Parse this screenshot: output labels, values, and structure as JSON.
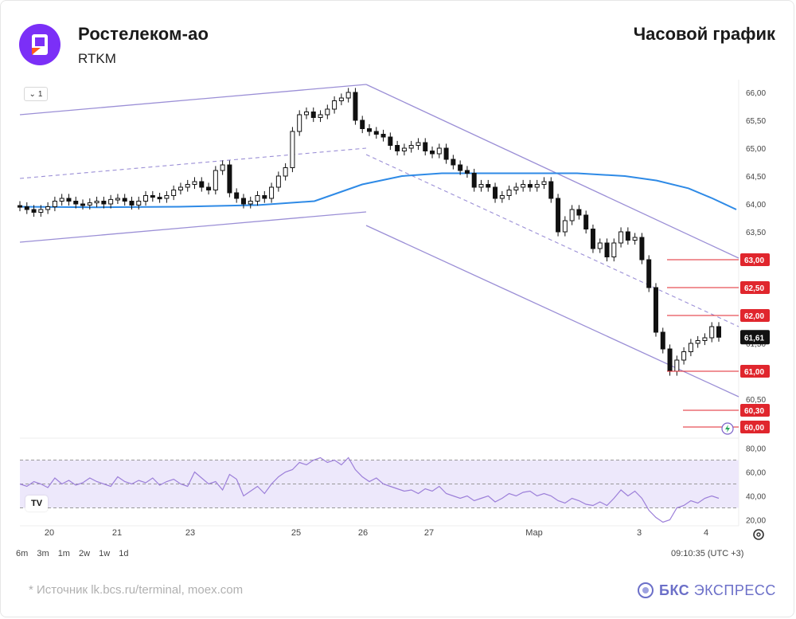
{
  "header": {
    "title": "Ростелеком-ао",
    "ticker": "RTKM",
    "chart_type_label": "Часовой график",
    "logo_icon": "rostelecom-logo-icon",
    "logo_color": "#7b2ff7"
  },
  "toolbar": {
    "collapse_label": "1",
    "intervals": [
      "6m",
      "3m",
      "1m",
      "2w",
      "1w",
      "1d"
    ],
    "timestamp": "09:10:35 (UTC +3)"
  },
  "footer": {
    "source": "*  Источник lk.bcs.ru/terminal, moex.com",
    "brand_bold": "БКС",
    "brand_regular": " ЭКСПРЕСС",
    "brand_color": "#6b6fc8"
  },
  "chart_data": [
    {
      "type": "candlestick",
      "y_axis_ticks": [
        "66,00",
        "65,50",
        "65,00",
        "64,50",
        "64,00",
        "63,50",
        "63,00",
        "62,50",
        "62,00",
        "61,50",
        "61,00",
        "60,50",
        "60,30",
        "60,00"
      ],
      "ylim": [
        60.0,
        66.1
      ],
      "x_ticks": [
        "20",
        "21",
        "23",
        "25",
        "26",
        "27",
        "Мар",
        "3",
        "4"
      ],
      "last_price": 61.61,
      "last_price_label": "61,61",
      "levels": [
        {
          "value": 63.0,
          "label": "63,00"
        },
        {
          "value": 62.5,
          "label": "62,50"
        },
        {
          "value": 62.0,
          "label": "62,00"
        },
        {
          "value": 61.0,
          "label": "61,00"
        },
        {
          "value": 60.3,
          "label": "60,30"
        },
        {
          "value": 60.0,
          "label": "60,00"
        }
      ],
      "level_color": "#e0262d",
      "channel_color": "#9b8fd6",
      "ma_color": "#2e8ae6",
      "candle_color": "#111111",
      "closes": [
        63.95,
        63.9,
        63.85,
        63.9,
        63.95,
        64.05,
        64.1,
        64.05,
        64.0,
        63.98,
        64.02,
        64.05,
        64.0,
        64.08,
        64.1,
        64.05,
        63.98,
        64.05,
        64.15,
        64.12,
        64.1,
        64.15,
        64.25,
        64.3,
        64.35,
        64.4,
        64.3,
        64.25,
        64.6,
        64.7,
        64.2,
        64.1,
        64.0,
        64.05,
        64.15,
        64.1,
        64.3,
        64.5,
        64.65,
        65.3,
        65.6,
        65.65,
        65.55,
        65.6,
        65.7,
        65.85,
        65.9,
        66.0,
        65.5,
        65.35,
        65.3,
        65.25,
        65.2,
        65.05,
        64.95,
        65.0,
        65.05,
        65.1,
        64.95,
        64.9,
        65.0,
        64.8,
        64.7,
        64.6,
        64.55,
        64.3,
        64.35,
        64.3,
        64.1,
        64.15,
        64.25,
        64.3,
        64.35,
        64.3,
        64.35,
        64.4,
        64.1,
        63.5,
        63.7,
        63.9,
        63.8,
        63.55,
        63.2,
        63.3,
        63.05,
        63.3,
        63.5,
        63.35,
        63.4,
        63.0,
        62.5,
        61.7,
        61.4,
        61.0,
        61.2,
        61.35,
        61.5,
        61.55,
        61.6,
        61.8,
        61.61
      ],
      "moving_average_points": [
        [
          0,
          63.95
        ],
        [
          100,
          63.94
        ],
        [
          200,
          63.95
        ],
        [
          300,
          63.98
        ],
        [
          370,
          64.05
        ],
        [
          400,
          64.2
        ],
        [
          430,
          64.35
        ],
        [
          480,
          64.5
        ],
        [
          530,
          64.55
        ],
        [
          580,
          64.55
        ],
        [
          640,
          64.55
        ],
        [
          700,
          64.55
        ],
        [
          760,
          64.5
        ],
        [
          800,
          64.42
        ],
        [
          840,
          64.28
        ],
        [
          870,
          64.1
        ],
        [
          900,
          63.9
        ]
      ],
      "rsi": {
        "ticks": [
          "80,00",
          "60,00",
          "40,00",
          "20,00"
        ],
        "ylim": [
          15,
          85
        ],
        "band": [
          30,
          70
        ],
        "mid": 50,
        "values": [
          50,
          48,
          52,
          50,
          47,
          55,
          50,
          53,
          49,
          51,
          55,
          52,
          50,
          48,
          56,
          52,
          50,
          53,
          51,
          55,
          49,
          52,
          54,
          50,
          48,
          60,
          55,
          50,
          52,
          45,
          58,
          54,
          40,
          44,
          48,
          42,
          50,
          56,
          60,
          62,
          68,
          66,
          70,
          72,
          68,
          70,
          66,
          72,
          62,
          56,
          52,
          55,
          50,
          48,
          46,
          44,
          45,
          42,
          46,
          44,
          48,
          42,
          40,
          38,
          40,
          36,
          38,
          40,
          35,
          38,
          42,
          40,
          43,
          44,
          40,
          42,
          40,
          36,
          34,
          38,
          36,
          33,
          32,
          35,
          32,
          38,
          45,
          40,
          44,
          38,
          28,
          22,
          18,
          20,
          30,
          32,
          36,
          34,
          38,
          40,
          38
        ]
      }
    }
  ]
}
